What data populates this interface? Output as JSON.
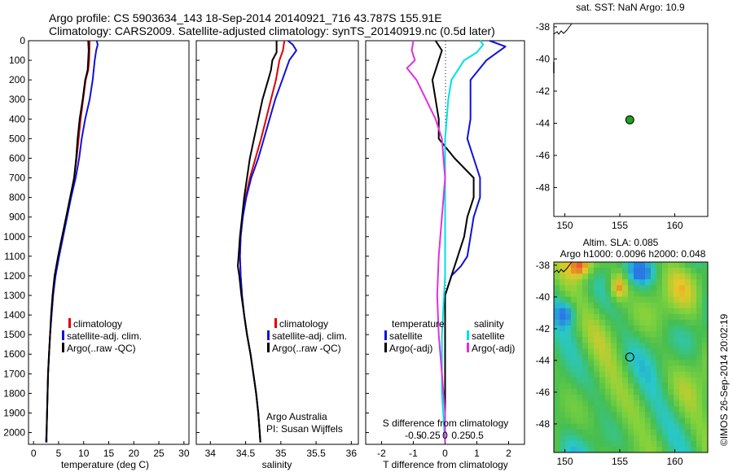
{
  "header": {
    "line1": "Argo profile: CS 5903634_143 18-Sep-2014 20140921_716 43.787S 155.91E",
    "line2": "Climatology: CARS2009. Satellite-adjusted climatology: synTS_20140919.nc (0.5d later)"
  },
  "footer": {
    "credit_org": "Argo Australia",
    "credit_pi": "PI: Susan Wijffels",
    "stamp": "©IMOS 26-Sep-2014 20:02:19"
  },
  "colors": {
    "climatology": "#e00000",
    "satellite": "#1010dd",
    "argo": "#000000",
    "sal_satellite": "#00e0e0",
    "sal_argo": "#e030e0",
    "marker": "#20a020"
  },
  "chart_data": [
    {
      "type": "line",
      "panel": "temperature",
      "xlabel": "temperature (deg C)",
      "xlim": [
        -1,
        31
      ],
      "xticks": [
        0,
        5,
        10,
        15,
        20,
        25,
        30
      ],
      "ylim": [
        2060,
        0
      ],
      "yticks": [
        0,
        100,
        200,
        300,
        400,
        500,
        600,
        700,
        800,
        900,
        1000,
        1100,
        1200,
        1300,
        1400,
        1500,
        1600,
        1700,
        1800,
        1900,
        2000
      ],
      "legend": [
        "climatology",
        "satellite-adj. clim.",
        "Argo(..raw -QC)"
      ],
      "series": [
        {
          "name": "climatology",
          "color_key": "climatology",
          "points": [
            [
              11.2,
              0
            ],
            [
              11.1,
              100
            ],
            [
              10.9,
              150
            ],
            [
              10.4,
              200
            ],
            [
              9.9,
              300
            ],
            [
              9.4,
              400
            ],
            [
              9.0,
              500
            ],
            [
              8.6,
              600
            ],
            [
              8.1,
              700
            ],
            [
              7.4,
              800
            ],
            [
              6.6,
              900
            ],
            [
              5.8,
              1000
            ],
            [
              5.0,
              1100
            ],
            [
              4.3,
              1200
            ],
            [
              3.9,
              1300
            ],
            [
              3.6,
              1400
            ],
            [
              3.3,
              1500
            ],
            [
              3.1,
              1600
            ],
            [
              2.9,
              1700
            ],
            [
              2.8,
              1800
            ],
            [
              2.7,
              1900
            ],
            [
              2.6,
              2000
            ],
            [
              2.5,
              2050
            ]
          ]
        },
        {
          "name": "satellite-adj. clim.",
          "color_key": "satellite",
          "points": [
            [
              12.6,
              0
            ],
            [
              12.8,
              20
            ],
            [
              12.5,
              50
            ],
            [
              12.2,
              100
            ],
            [
              11.8,
              200
            ],
            [
              11.2,
              300
            ],
            [
              10.3,
              400
            ],
            [
              9.6,
              500
            ],
            [
              9.1,
              600
            ],
            [
              8.4,
              700
            ],
            [
              7.5,
              800
            ],
            [
              6.7,
              900
            ],
            [
              5.9,
              1000
            ],
            [
              5.1,
              1100
            ],
            [
              4.4,
              1200
            ],
            [
              3.9,
              1300
            ],
            [
              3.6,
              1400
            ],
            [
              3.3,
              1500
            ],
            [
              3.1,
              1600
            ],
            [
              2.9,
              1700
            ],
            [
              2.8,
              1800
            ],
            [
              2.7,
              1900
            ],
            [
              2.6,
              2000
            ],
            [
              2.5,
              2050
            ]
          ]
        },
        {
          "name": "Argo(..raw -QC)",
          "color_key": "argo",
          "points": [
            [
              10.9,
              0
            ],
            [
              11.0,
              50
            ],
            [
              10.9,
              100
            ],
            [
              10.8,
              150
            ],
            [
              10.3,
              200
            ],
            [
              9.8,
              300
            ],
            [
              9.2,
              400
            ],
            [
              8.8,
              500
            ],
            [
              8.5,
              600
            ],
            [
              8.1,
              700
            ],
            [
              7.3,
              800
            ],
            [
              6.5,
              900
            ],
            [
              5.7,
              1000
            ],
            [
              4.9,
              1100
            ],
            [
              4.2,
              1200
            ],
            [
              3.8,
              1300
            ],
            [
              3.5,
              1400
            ],
            [
              3.3,
              1500
            ],
            [
              3.1,
              1600
            ],
            [
              2.9,
              1700
            ],
            [
              2.8,
              1800
            ],
            [
              2.7,
              1900
            ],
            [
              2.6,
              2000
            ],
            [
              2.6,
              2050
            ]
          ]
        }
      ]
    },
    {
      "type": "line",
      "panel": "salinity",
      "xlabel": "salinity",
      "xlim": [
        33.8,
        36.1
      ],
      "xticks": [
        34,
        34.5,
        35,
        35.5,
        36
      ],
      "ylim": [
        2060,
        0
      ],
      "legend": [
        "climatology",
        "satellite-adj. clim.",
        "Argo(..raw -QC)"
      ],
      "series": [
        {
          "name": "climatology",
          "color_key": "climatology",
          "points": [
            [
              35.05,
              0
            ],
            [
              35.03,
              50
            ],
            [
              34.98,
              100
            ],
            [
              34.93,
              200
            ],
            [
              34.86,
              300
            ],
            [
              34.79,
              400
            ],
            [
              34.72,
              500
            ],
            [
              34.64,
              600
            ],
            [
              34.56,
              700
            ],
            [
              34.5,
              800
            ],
            [
              34.46,
              900
            ],
            [
              34.43,
              1000
            ],
            [
              34.42,
              1100
            ],
            [
              34.43,
              1200
            ],
            [
              34.45,
              1300
            ],
            [
              34.48,
              1400
            ],
            [
              34.52,
              1500
            ],
            [
              34.57,
              1600
            ],
            [
              34.61,
              1700
            ],
            [
              34.65,
              1800
            ],
            [
              34.68,
              1900
            ],
            [
              34.7,
              2000
            ],
            [
              34.71,
              2050
            ]
          ]
        },
        {
          "name": "satellite-adj. clim.",
          "color_key": "satellite",
          "points": [
            [
              35.1,
              0
            ],
            [
              35.17,
              20
            ],
            [
              35.22,
              50
            ],
            [
              35.12,
              100
            ],
            [
              35.02,
              200
            ],
            [
              34.92,
              300
            ],
            [
              34.84,
              400
            ],
            [
              34.76,
              500
            ],
            [
              34.68,
              600
            ],
            [
              34.58,
              700
            ],
            [
              34.51,
              800
            ],
            [
              34.46,
              900
            ],
            [
              34.43,
              1000
            ],
            [
              34.42,
              1100
            ],
            [
              34.43,
              1200
            ],
            [
              34.45,
              1300
            ],
            [
              34.48,
              1400
            ],
            [
              34.52,
              1500
            ],
            [
              34.57,
              1600
            ],
            [
              34.61,
              1700
            ],
            [
              34.65,
              1800
            ],
            [
              34.68,
              1900
            ],
            [
              34.7,
              2000
            ],
            [
              34.71,
              2050
            ]
          ]
        },
        {
          "name": "Argo(..raw -QC)",
          "color_key": "argo",
          "points": [
            [
              34.94,
              0
            ],
            [
              34.94,
              60
            ],
            [
              34.88,
              100
            ],
            [
              34.86,
              150
            ],
            [
              34.82,
              200
            ],
            [
              34.74,
              300
            ],
            [
              34.68,
              400
            ],
            [
              34.62,
              500
            ],
            [
              34.56,
              600
            ],
            [
              34.52,
              700
            ],
            [
              34.48,
              800
            ],
            [
              34.45,
              900
            ],
            [
              34.42,
              1000
            ],
            [
              34.4,
              1100
            ],
            [
              34.39,
              1150
            ],
            [
              34.41,
              1200
            ],
            [
              34.44,
              1300
            ],
            [
              34.48,
              1400
            ],
            [
              34.52,
              1500
            ],
            [
              34.57,
              1600
            ],
            [
              34.61,
              1700
            ],
            [
              34.65,
              1800
            ],
            [
              34.68,
              1900
            ],
            [
              34.7,
              2000
            ],
            [
              34.71,
              2050
            ]
          ]
        }
      ]
    },
    {
      "type": "line",
      "panel": "difference",
      "xlabel": "T difference from climatology",
      "xlabel_top": "S difference from climatology",
      "xlim": [
        -2.5,
        2.5
      ],
      "xticks": [
        -2,
        -1,
        0,
        1,
        2
      ],
      "sticks_values": [
        -0.5,
        -0.25,
        0,
        0.25,
        0.5
      ],
      "sticks_labels": [
        "-0.5",
        "-0.25",
        "0",
        "0.25",
        "0.5"
      ],
      "ylim": [
        2060,
        0
      ],
      "legend_t_title": "temperature",
      "legend_s_title": "salinity",
      "legend": [
        "satellite",
        "Argo(-adj)",
        "satellite",
        "Argo(-adj)"
      ],
      "series": [
        {
          "name": "satellite",
          "group": "temperature",
          "color_key": "satellite",
          "points": [
            [
              1.4,
              0
            ],
            [
              1.9,
              30
            ],
            [
              1.3,
              100
            ],
            [
              0.8,
              200
            ],
            [
              0.8,
              400
            ],
            [
              0.7,
              500
            ],
            [
              0.9,
              600
            ],
            [
              1.1,
              700
            ],
            [
              1.1,
              800
            ],
            [
              0.9,
              900
            ],
            [
              0.8,
              1000
            ],
            [
              0.7,
              1100
            ],
            [
              0.5,
              1150
            ],
            [
              0.2,
              1200
            ],
            [
              0.0,
              1300
            ],
            [
              0.0,
              2050
            ]
          ]
        },
        {
          "name": "Argo(-adj)",
          "group": "temperature",
          "color_key": "argo",
          "points": [
            [
              -0.3,
              0
            ],
            [
              -0.1,
              50
            ],
            [
              -0.2,
              100
            ],
            [
              -0.4,
              200
            ],
            [
              -0.3,
              300
            ],
            [
              -0.2,
              400
            ],
            [
              -0.2,
              500
            ],
            [
              0.3,
              600
            ],
            [
              0.9,
              700
            ],
            [
              0.9,
              800
            ],
            [
              0.7,
              900
            ],
            [
              0.6,
              1000
            ],
            [
              0.4,
              1100
            ],
            [
              0.2,
              1200
            ],
            [
              0.0,
              1300
            ],
            [
              0.0,
              2050
            ]
          ]
        },
        {
          "name": "satellite",
          "group": "salinity",
          "color_key": "sal_satellite",
          "points": [
            [
              1.1,
              0
            ],
            [
              1.2,
              20
            ],
            [
              1.0,
              60
            ],
            [
              0.6,
              100
            ],
            [
              0.2,
              200
            ],
            [
              0.1,
              300
            ],
            [
              0.05,
              400
            ],
            [
              0.0,
              500
            ],
            [
              0.0,
              1200
            ],
            [
              -0.1,
              1500
            ],
            [
              -0.1,
              1800
            ],
            [
              0.0,
              2050
            ]
          ]
        },
        {
          "name": "Argo(-adj)",
          "group": "salinity",
          "color_key": "sal_argo",
          "points": [
            [
              -1.0,
              0
            ],
            [
              -1.05,
              50
            ],
            [
              -0.95,
              100
            ],
            [
              -1.2,
              140
            ],
            [
              -0.9,
              200
            ],
            [
              -0.6,
              300
            ],
            [
              -0.3,
              400
            ],
            [
              -0.1,
              500
            ],
            [
              0.0,
              700
            ],
            [
              -0.1,
              900
            ],
            [
              -0.2,
              1100
            ],
            [
              -0.25,
              1300
            ],
            [
              -0.2,
              1500
            ],
            [
              -0.1,
              1700
            ],
            [
              0.0,
              1900
            ],
            [
              0.0,
              2050
            ]
          ]
        }
      ]
    },
    {
      "type": "scatter",
      "panel": "sst-map",
      "title": "sat. SST: NaN Argo: 10.9",
      "xlim": [
        149,
        163
      ],
      "xticks": [
        150,
        155,
        160
      ],
      "ylim": [
        -49.8,
        -37.8
      ],
      "yticks": [
        -38,
        -40,
        -42,
        -44,
        -46,
        -48
      ],
      "ytick_labels": [
        "-38",
        "-40",
        "-42",
        "-44",
        "-46",
        "-48"
      ],
      "points": [
        [
          155.91,
          -43.787
        ]
      ]
    },
    {
      "type": "heatmap",
      "panel": "sla-map",
      "title_line1": "Altim. SLA: 0.085",
      "title_line2": "Argo h1000: 0.0096 h2000: 0.048",
      "xlim": [
        149,
        163
      ],
      "xticks": [
        150,
        155,
        160
      ],
      "ylim": [
        -49.8,
        -37.8
      ],
      "yticks": [
        -38,
        -40,
        -42,
        -44,
        -46,
        -48
      ],
      "ytick_labels": [
        "-38",
        "-40",
        "-42",
        "-44",
        "-46",
        "-48"
      ],
      "points": [
        [
          155.91,
          -43.787
        ]
      ]
    }
  ]
}
